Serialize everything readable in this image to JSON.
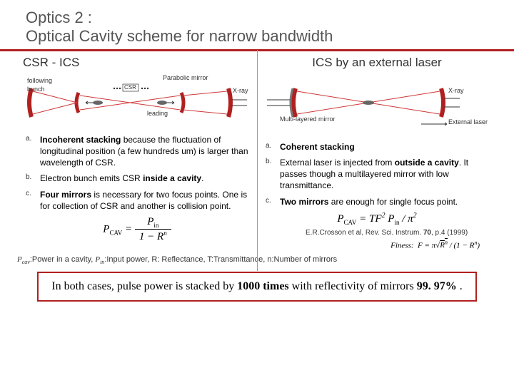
{
  "title_line1": "Optics 2 :",
  "title_line2": "Optical Cavity scheme for narrow bandwidth",
  "left": {
    "heading": "CSR - ICS",
    "diagram": {
      "csr_label": "CSR",
      "para_label": "Parabolic mirror",
      "leading_label": "leading",
      "following_label": "following",
      "bunch_label": "bunch",
      "xray_label": "X-ray",
      "mirror_color": "#b02020",
      "beam_color": "#d03838"
    },
    "points": [
      {
        "mk": "a.",
        "html": "<span class='bold'>Incoherent stacking</span> because the fluctuation of longitudinal position (a few hundreds um) is larger than wavelength of CSR."
      },
      {
        "mk": "b.",
        "html": "Electron bunch emits CSR <span class='bold'>inside a cavity</span>."
      },
      {
        "mk": "c.",
        "html": "<span class='bold'>Four mirrors</span> is necessary for two focus points. One is for collection of CSR and another is collision point."
      }
    ],
    "formula": "P_{CAV} = P_{in} / (1 − R^n)"
  },
  "right": {
    "heading": "ICS by an external laser",
    "diagram": {
      "ml_mirror": "Multi-layered mirror",
      "ext_laser": "External laser",
      "xray_label": "X-ray",
      "mirror_color": "#b02020",
      "beam_color": "#d03838"
    },
    "points": [
      {
        "mk": "a.",
        "html": "<span class='bold'>Coherent stacking</span>"
      },
      {
        "mk": "b.",
        "html": " External laser is injected from <span class='bold'>outside a cavity</span>. It passes though a multilayered mirror with low transmittance."
      },
      {
        "mk": "c.",
        "html": " <span class='bold'>Two mirrors</span> are enough for single focus point."
      }
    ],
    "formula": "P_{CAV} = TF^{2} P_{in} / π^{2}",
    "cite": "E.R.Crosson et al, Rev. Sci. Instrum. 70, p.4 (1999)",
    "finess": "Finess:  F = π√(R^n) / (1 − R^n)"
  },
  "footnote": "P_cav:Power in a cavity, P_in:Input power, R: Reflectance, T:Transmittance, n:Number of mirrors",
  "banner": "In both cases, pulse power is stacked by 1000 times with reflectivity of mirrors 99. 97% ."
}
